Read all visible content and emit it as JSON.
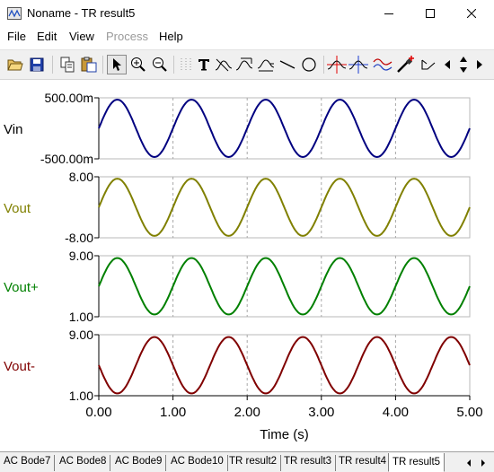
{
  "window": {
    "title": "Noname - TR result5"
  },
  "menu": {
    "file": "File",
    "edit": "Edit",
    "view": "View",
    "process": "Process",
    "help": "Help"
  },
  "toolbar_icons": [
    "open-icon",
    "save-icon",
    "copy-icon",
    "paste-icon",
    "select-arrow-icon",
    "zoom-in-icon",
    "zoom-out-icon",
    "grid-icon",
    "text-icon",
    "cursor-a-icon",
    "cursor-b-icon",
    "cursor-c-icon",
    "line-icon",
    "circle-icon",
    "cursor-red-icon",
    "cursor-blue-icon",
    "waveform-icon",
    "marker-icon",
    "slope-icon",
    "up-down-icon"
  ],
  "chart_data": {
    "type": "line",
    "xlabel": "Time (s)",
    "xlim": [
      0,
      5
    ],
    "x_ticks": [
      "0.00",
      "1.00",
      "2.00",
      "3.00",
      "4.00",
      "5.00"
    ],
    "vertical_grid_at": [
      1,
      2,
      3,
      4
    ],
    "panels": [
      {
        "name": "Vin",
        "color": "#000080",
        "ymin": -500,
        "ymax": 500,
        "ticks": [
          "500.00m",
          "-500.00m"
        ],
        "amplitude": 470,
        "offset": 0,
        "frequency": 1,
        "phase_deg": 0
      },
      {
        "name": "Vout",
        "color": "#808000",
        "ymin": -8,
        "ymax": 8,
        "ticks": [
          "8.00",
          "-8.00"
        ],
        "amplitude": 7.5,
        "offset": 0,
        "frequency": 1,
        "phase_deg": 0
      },
      {
        "name": "Vout+",
        "color": "#008000",
        "ymin": 1,
        "ymax": 9,
        "ticks": [
          "9.00",
          "1.00"
        ],
        "amplitude": 3.7,
        "offset": 5,
        "frequency": 1,
        "phase_deg": 0
      },
      {
        "name": "Vout-",
        "color": "#800000",
        "ymin": 1,
        "ymax": 9,
        "ticks": [
          "9.00",
          "1.00"
        ],
        "amplitude": 3.7,
        "offset": 5,
        "frequency": 1,
        "phase_deg": 180
      }
    ]
  },
  "tabs": [
    {
      "label": "AC Bode7",
      "active": false
    },
    {
      "label": "AC Bode8",
      "active": false
    },
    {
      "label": "AC Bode9",
      "active": false
    },
    {
      "label": "AC Bode10",
      "active": false
    },
    {
      "label": "TR result2",
      "active": false
    },
    {
      "label": "TR result3",
      "active": false
    },
    {
      "label": "TR result4",
      "active": false
    },
    {
      "label": "TR result5",
      "active": true
    }
  ]
}
